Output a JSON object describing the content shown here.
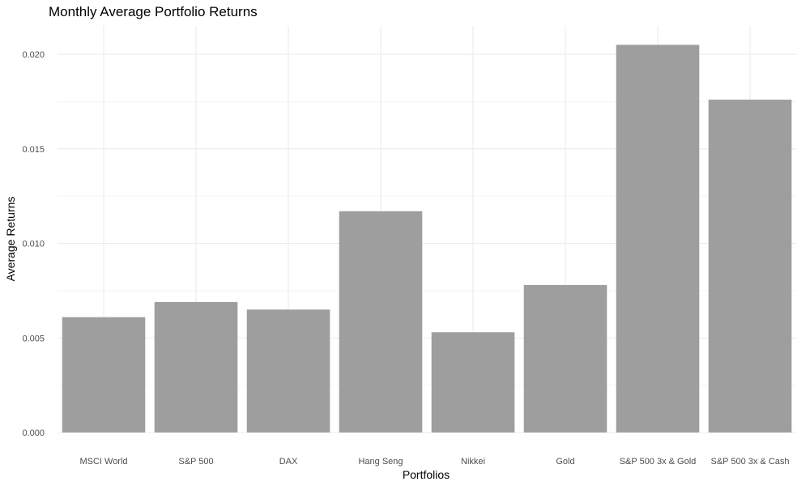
{
  "chart_data": {
    "type": "bar",
    "title": "Monthly Average Portfolio Returns",
    "xlabel": "Portfolios",
    "ylabel": "Average Returns",
    "categories": [
      "MSCI World",
      "S&P 500",
      "DAX",
      "Hang Seng",
      "Nikkei",
      "Gold",
      "S&P 500 3x & Gold",
      "S&P 500 3x & Cash"
    ],
    "values": [
      0.0061,
      0.0069,
      0.0065,
      0.0117,
      0.0053,
      0.0078,
      0.0205,
      0.0176
    ],
    "ylim": [
      0,
      0.0215
    ],
    "yticks": [
      0.0,
      0.005,
      0.01,
      0.015,
      0.02
    ],
    "ytick_labels": [
      "0.000",
      "0.005",
      "0.010",
      "0.015",
      "0.020"
    ],
    "bar_color": "#9e9e9e",
    "grid": true,
    "legend": "none"
  }
}
